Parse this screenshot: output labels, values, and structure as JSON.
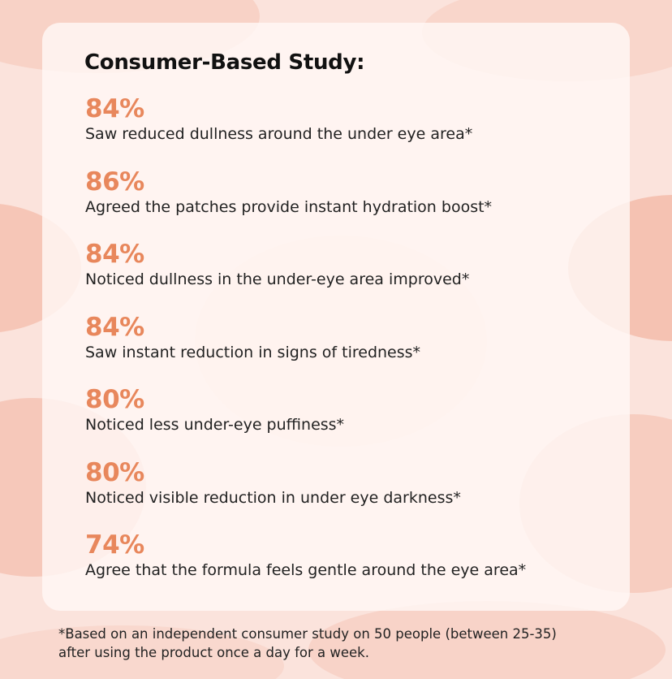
{
  "title": "Consumer-Based Study:",
  "items": [
    {
      "stat": "84%",
      "text": "Saw reduced dullness around the under eye area*"
    },
    {
      "stat": "86%",
      "text": "Agreed the patches provide instant hydration boost*"
    },
    {
      "stat": "84%",
      "text": "Noticed dullness in the under-eye area improved*"
    },
    {
      "stat": "84%",
      "text": "Saw instant reduction in signs of tiredness*"
    },
    {
      "stat": "80%",
      "text": "Noticed less under-eye puffiness*"
    },
    {
      "stat": "80%",
      "text": "Noticed visible reduction in under eye darkness*"
    },
    {
      "stat": "74%",
      "text": "Agree that the formula feels gentle around the eye area*"
    }
  ],
  "footnote": [
    "*Based on an independent consumer study on 50 people (between 25-35)",
    "after using the product once a day for a week."
  ]
}
